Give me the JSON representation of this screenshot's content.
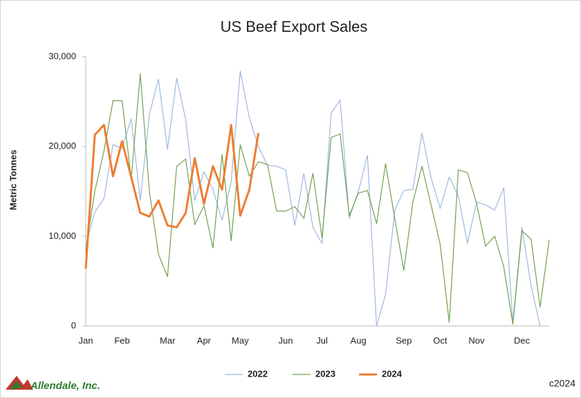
{
  "chart_data": {
    "type": "line",
    "title": "US Beef Export Sales",
    "y_label": "Metric Tonnes",
    "categories": [
      "Jan",
      null,
      null,
      null,
      "Feb",
      null,
      null,
      null,
      null,
      "Mar",
      null,
      null,
      null,
      "Apr",
      null,
      null,
      null,
      "May",
      null,
      null,
      null,
      null,
      "Jun",
      null,
      null,
      null,
      "Jul",
      null,
      null,
      null,
      "Aug",
      null,
      null,
      null,
      null,
      "Sep",
      null,
      null,
      null,
      "Oct",
      null,
      null,
      null,
      "Nov",
      null,
      null,
      null,
      null,
      "Dec",
      null,
      null,
      null
    ],
    "series": [
      {
        "name": "2022",
        "color": "#9db7dc",
        "width": 1.2,
        "values": [
          9000,
          12700,
          14200,
          20200,
          19800,
          23100,
          14000,
          23600,
          27500,
          19700,
          27600,
          23000,
          14000,
          17200,
          15200,
          11800,
          16000,
          28400,
          23200,
          20000,
          17900,
          17800,
          17400,
          11200,
          17000,
          11000,
          9200,
          23700,
          25200,
          12000,
          15000,
          19000,
          0,
          3500,
          12900,
          15100,
          15200,
          21500,
          16500,
          13100,
          16600,
          14500,
          9200,
          13800,
          13500,
          12900,
          15400,
          400,
          11000,
          4500,
          0,
          null
        ]
      },
      {
        "name": "2023",
        "color": "#70a050",
        "width": 1.2,
        "values": [
          8500,
          15000,
          19500,
          25100,
          25100,
          16400,
          28100,
          15000,
          8000,
          5500,
          17800,
          18600,
          11300,
          13400,
          8700,
          19100,
          9500,
          20200,
          16700,
          18300,
          18000,
          12800,
          12800,
          13300,
          12000,
          17000,
          9800,
          21000,
          21400,
          12300,
          14800,
          15100,
          11400,
          18100,
          12000,
          6200,
          13800,
          17800,
          13500,
          9100,
          400,
          17400,
          17100,
          13700,
          8900,
          10000,
          6600,
          200,
          10600,
          9700,
          2100,
          9600
        ]
      },
      {
        "name": "2024",
        "color": "#ed7d31",
        "width": 3,
        "values": [
          6400,
          21300,
          22400,
          16700,
          20600,
          16600,
          12600,
          12200,
          14000,
          11200,
          11000,
          12600,
          18700,
          13600,
          17800,
          15200,
          22400,
          12300,
          15200,
          21500,
          null,
          null,
          null,
          null,
          null,
          null,
          null,
          null,
          null,
          null,
          null,
          null,
          null,
          null,
          null,
          null,
          null,
          null,
          null,
          null,
          null,
          null,
          null,
          null,
          null,
          null,
          null,
          null,
          null,
          null,
          null,
          null
        ]
      }
    ],
    "ylim": [
      0,
      30000
    ],
    "yticks": [
      0,
      {
        "value": 10000,
        "label": "10,000"
      },
      {
        "value": 20000,
        "label": "20,000"
      },
      {
        "value": 30000,
        "label": "30,000"
      }
    ],
    "legend": "bottom",
    "logo": "Allendale, Inc.",
    "credit": "c2024"
  }
}
